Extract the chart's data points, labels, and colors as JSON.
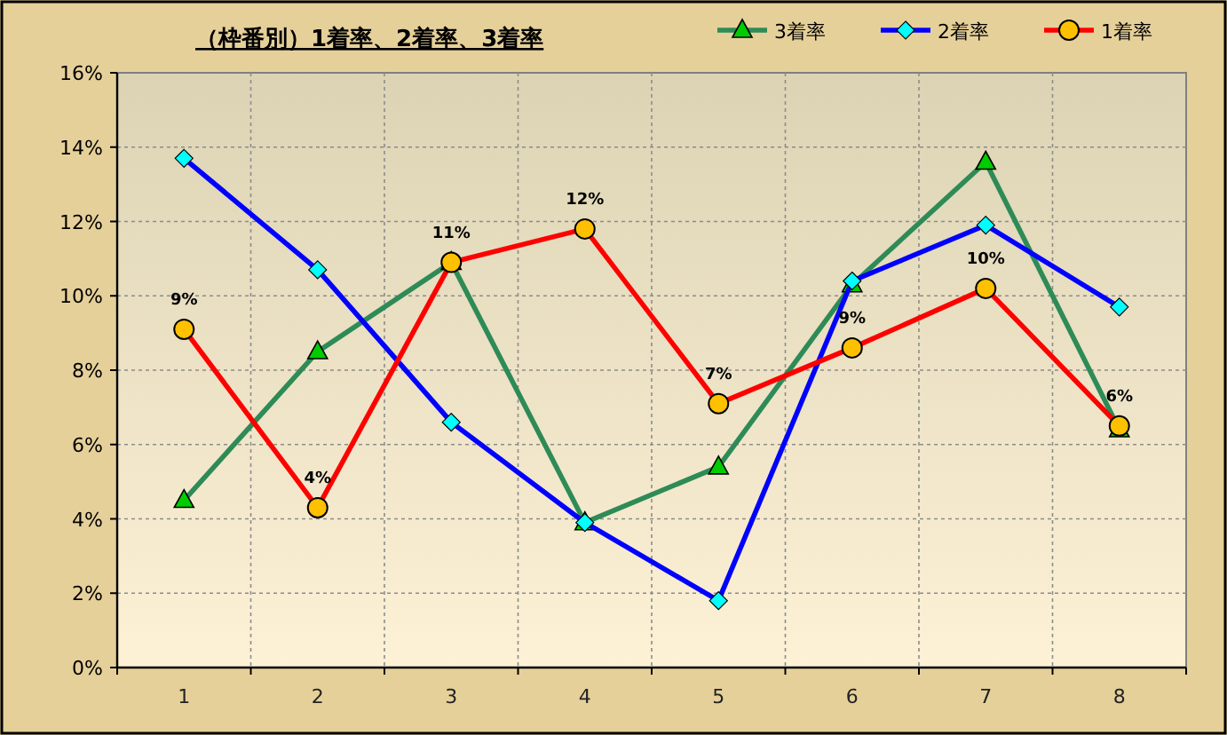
{
  "chart_data": {
    "type": "line",
    "title": "（枠番別）1着率、2着率、3着率",
    "categories": [
      "1",
      "2",
      "3",
      "4",
      "5",
      "6",
      "7",
      "8"
    ],
    "series": [
      {
        "name": "3着率",
        "color": "#2e8b57",
        "marker": "triangle",
        "values": [
          4.5,
          8.5,
          10.9,
          3.9,
          5.4,
          10.3,
          13.6,
          6.4
        ]
      },
      {
        "name": "2着率",
        "color": "#0000ff",
        "marker": "diamond",
        "values": [
          13.7,
          10.7,
          6.6,
          3.9,
          1.8,
          10.4,
          11.9,
          9.7
        ]
      },
      {
        "name": "1着率",
        "color": "#ff0000",
        "marker": "circle",
        "values": [
          9.1,
          4.3,
          10.9,
          11.8,
          7.1,
          8.6,
          10.2,
          6.5
        ],
        "value_labels": [
          "9%",
          "4%",
          "11%",
          "12%",
          "7%",
          "9%",
          "10%",
          "6%"
        ]
      }
    ],
    "ylim": [
      0,
      16
    ],
    "yticks": [
      {
        "value": 0,
        "label": "0%"
      },
      {
        "value": 2,
        "label": "2%"
      },
      {
        "value": 4,
        "label": "4%"
      },
      {
        "value": 6,
        "label": "6%"
      },
      {
        "value": 8,
        "label": "8%"
      },
      {
        "value": 10,
        "label": "10%"
      },
      {
        "value": 12,
        "label": "12%"
      },
      {
        "value": 14,
        "label": "14%"
      },
      {
        "value": 16,
        "label": "16%"
      }
    ],
    "grid": true,
    "legend": "top right",
    "line_style": "solid"
  }
}
